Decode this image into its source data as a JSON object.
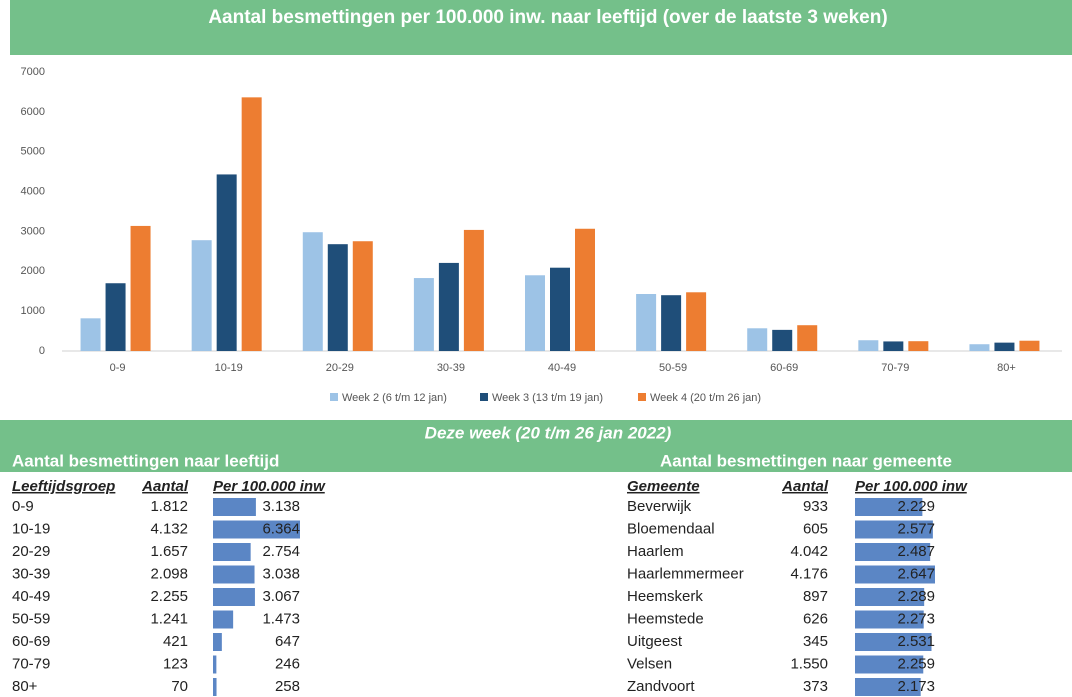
{
  "chart_data": {
    "type": "bar",
    "title": "Aantal besmettingen per 100.000 inw. naar leeftijd (over de laatste 3 weken)",
    "categories": [
      "0-9",
      "10-19",
      "20-29",
      "30-39",
      "40-49",
      "50-59",
      "60-69",
      "70-79",
      "80+"
    ],
    "series": [
      {
        "name": "Week 2 (6 t/m 12 jan)",
        "color": "#9dc3e6",
        "values": [
          820,
          2780,
          2980,
          1830,
          1900,
          1430,
          570,
          270,
          170
        ]
      },
      {
        "name": "Week 3 (13 t/m 19 jan)",
        "color": "#1f4e79",
        "values": [
          1700,
          4430,
          2680,
          2210,
          2090,
          1400,
          530,
          240,
          210
        ]
      },
      {
        "name": "Week 4 (20 t/m 26 jan)",
        "color": "#ed7d31",
        "values": [
          3138,
          6364,
          2754,
          3038,
          3067,
          1473,
          647,
          246,
          258
        ]
      }
    ],
    "ylim": [
      0,
      7000
    ],
    "yticks": [
      0,
      1000,
      2000,
      3000,
      4000,
      5000,
      6000,
      7000
    ],
    "grid": false,
    "legend": "bottom"
  },
  "week_banner": "Deze week (20 t/m 26 jan 2022)",
  "age_table": {
    "title": "Aantal besmettingen naar leeftijd",
    "bar_color": "#5b86c5",
    "columns": [
      "Leeftijdsgroep",
      "Aantal",
      "Per 100.000 inw"
    ],
    "rows": [
      {
        "name": "0-9",
        "aantal": "1.812",
        "per": {
          "value": 3138,
          "label": "3.138"
        }
      },
      {
        "name": "10-19",
        "aantal": "4.132",
        "per": {
          "value": 6364,
          "label": "6.364"
        }
      },
      {
        "name": "20-29",
        "aantal": "1.657",
        "per": {
          "value": 2754,
          "label": "2.754"
        }
      },
      {
        "name": "30-39",
        "aantal": "2.098",
        "per": {
          "value": 3038,
          "label": "3.038"
        }
      },
      {
        "name": "40-49",
        "aantal": "2.255",
        "per": {
          "value": 3067,
          "label": "3.067"
        }
      },
      {
        "name": "50-59",
        "aantal": "1.241",
        "per": {
          "value": 1473,
          "label": "1.473"
        }
      },
      {
        "name": "60-69",
        "aantal": "421",
        "per": {
          "value": 647,
          "label": "647"
        }
      },
      {
        "name": "70-79",
        "aantal": "123",
        "per": {
          "value": 246,
          "label": "246"
        }
      },
      {
        "name": "80+",
        "aantal": "70",
        "per": {
          "value": 258,
          "label": "258"
        }
      }
    ]
  },
  "municipality_table": {
    "title": "Aantal besmettingen naar gemeente",
    "bar_color": "#5b86c5",
    "columns": [
      "Gemeente",
      "Aantal",
      "Per 100.000 inw"
    ],
    "rows": [
      {
        "name": "Beverwijk",
        "aantal": "933",
        "per": {
          "value": 2229,
          "label": "2.229"
        }
      },
      {
        "name": "Bloemendaal",
        "aantal": "605",
        "per": {
          "value": 2577,
          "label": "2.577"
        }
      },
      {
        "name": "Haarlem",
        "aantal": "4.042",
        "per": {
          "value": 2487,
          "label": "2.487"
        }
      },
      {
        "name": "Haarlemmermeer",
        "aantal": "4.176",
        "per": {
          "value": 2647,
          "label": "2.647"
        }
      },
      {
        "name": "Heemskerk",
        "aantal": "897",
        "per": {
          "value": 2289,
          "label": "2.289"
        }
      },
      {
        "name": "Heemstede",
        "aantal": "626",
        "per": {
          "value": 2273,
          "label": "2.273"
        }
      },
      {
        "name": "Uitgeest",
        "aantal": "345",
        "per": {
          "value": 2531,
          "label": "2.531"
        }
      },
      {
        "name": "Velsen",
        "aantal": "1.550",
        "per": {
          "value": 2259,
          "label": "2.259"
        }
      },
      {
        "name": "Zandvoort",
        "aantal": "373",
        "per": {
          "value": 2173,
          "label": "2.173"
        }
      }
    ]
  }
}
